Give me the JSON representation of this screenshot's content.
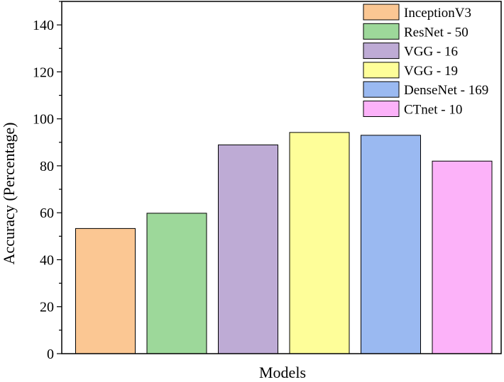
{
  "chart_data": {
    "type": "bar",
    "xlabel": "Models",
    "ylabel": "Accuracy (Percentage)",
    "ylim": [
      0,
      150
    ],
    "yticks": [
      0,
      20,
      40,
      60,
      80,
      100,
      120,
      140
    ],
    "grid": false,
    "legend_position": "top-right",
    "series": [
      {
        "name": "InceptionV3",
        "value": 53.3,
        "color": "#FBC793"
      },
      {
        "name": "ResNet - 50",
        "value": 59.8,
        "color": "#9DD89A"
      },
      {
        "name": "VGG - 16",
        "value": 88.9,
        "color": "#BEABD5"
      },
      {
        "name": "VGG - 19",
        "value": 94.2,
        "color": "#FEFE99"
      },
      {
        "name": "DenseNet - 169",
        "value": 93.0,
        "color": "#9AB9F1"
      },
      {
        "name": "CTnet - 10",
        "value": 82.0,
        "color": "#FCB2F9"
      }
    ]
  }
}
